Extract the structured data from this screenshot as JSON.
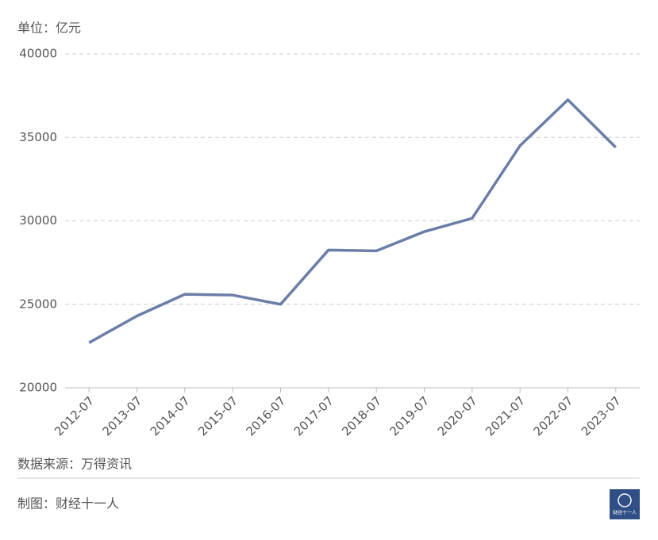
{
  "chart_data": {
    "type": "line",
    "unit_label": "单位：亿元",
    "categories": [
      "2012-07",
      "2013-07",
      "2014-07",
      "2015-07",
      "2016-07",
      "2017-07",
      "2018-07",
      "2019-07",
      "2020-07",
      "2021-07",
      "2022-07",
      "2023-07"
    ],
    "values": [
      22700,
      24300,
      25600,
      25550,
      25000,
      28250,
      28200,
      29350,
      30150,
      34500,
      37250,
      34400
    ],
    "color": "#6a7ea8",
    "ylim": [
      20000,
      40000
    ],
    "yticks": [
      20000,
      25000,
      30000,
      35000,
      40000
    ],
    "grid": true
  },
  "footer": {
    "source": "数据来源：万得资讯",
    "credit": "制图：财经十一人",
    "logo_text": "财经十一人"
  }
}
